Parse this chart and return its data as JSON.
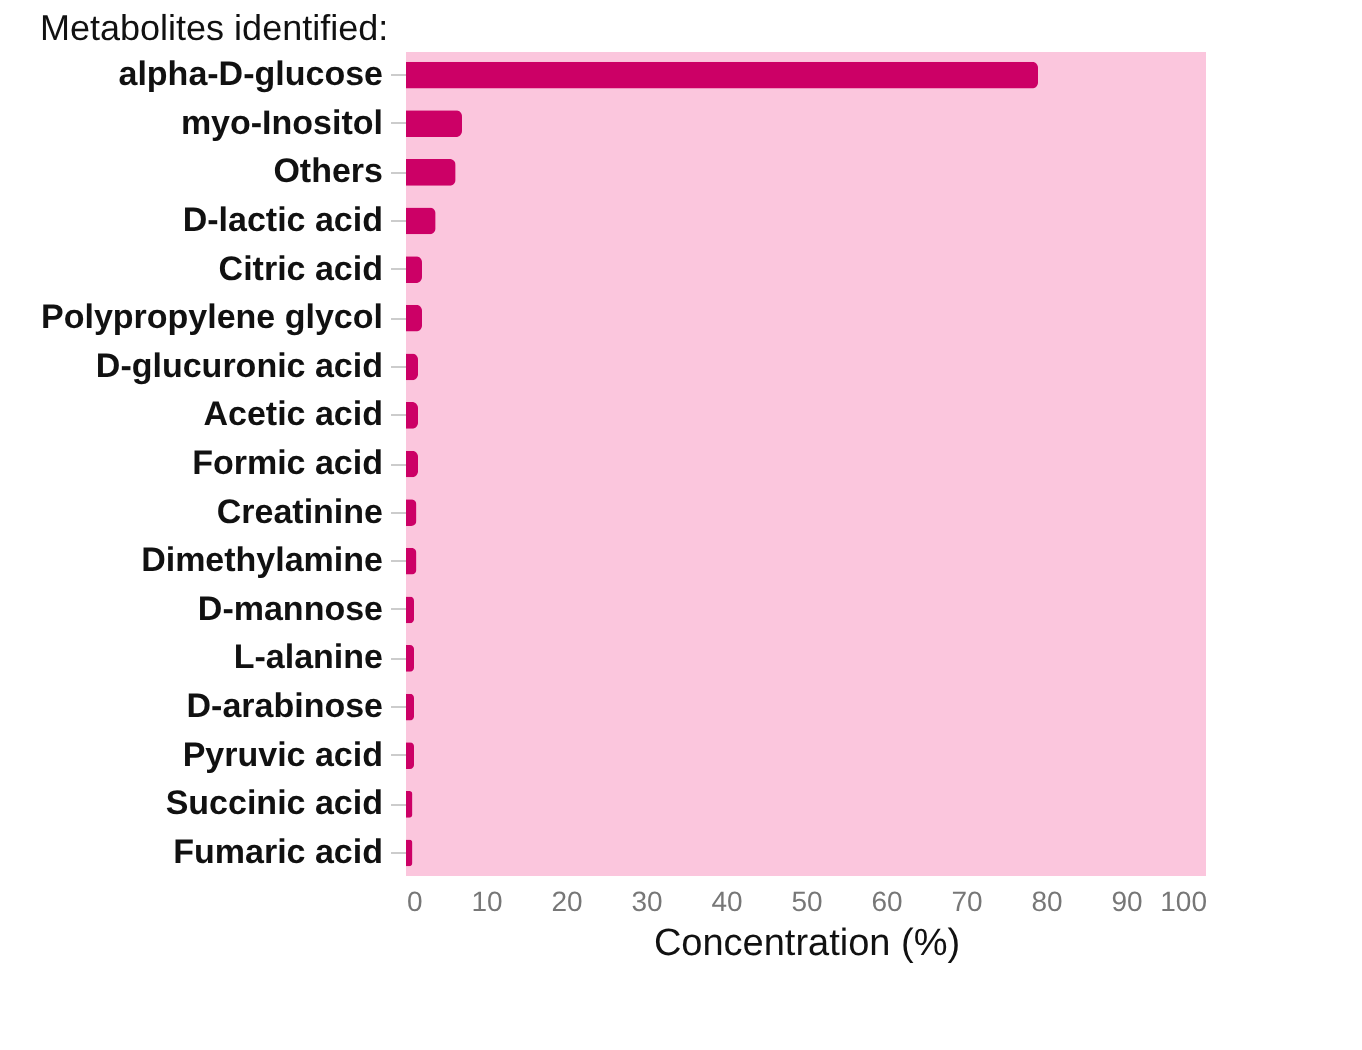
{
  "chart_data": {
    "type": "bar",
    "orientation": "horizontal",
    "title": "Metabolites identified:",
    "xlabel": "Concentration (%)",
    "categories": [
      "alpha-D-glucose",
      "myo-Inositol",
      "Others",
      "D-lactic acid",
      "Citric acid",
      "Polypropylene glycol",
      "D-glucuronic acid",
      "Acetic acid",
      "Formic acid",
      "Creatinine",
      "Dimethylamine",
      "D-mannose",
      "L-alanine",
      "D-arabinose",
      "Pyruvic acid",
      "Succinic acid",
      "Fumaric acid"
    ],
    "values": [
      79,
      7,
      6.2,
      3.7,
      2,
      2,
      1.5,
      1.5,
      1.5,
      1.3,
      1.3,
      1,
      1,
      1,
      1,
      0.8,
      0.8
    ],
    "color": "#cc0066",
    "xlim": [
      0,
      100
    ],
    "xticks": [
      0,
      10,
      20,
      30,
      40,
      50,
      60,
      70,
      80,
      90,
      100
    ],
    "grid": false
  }
}
